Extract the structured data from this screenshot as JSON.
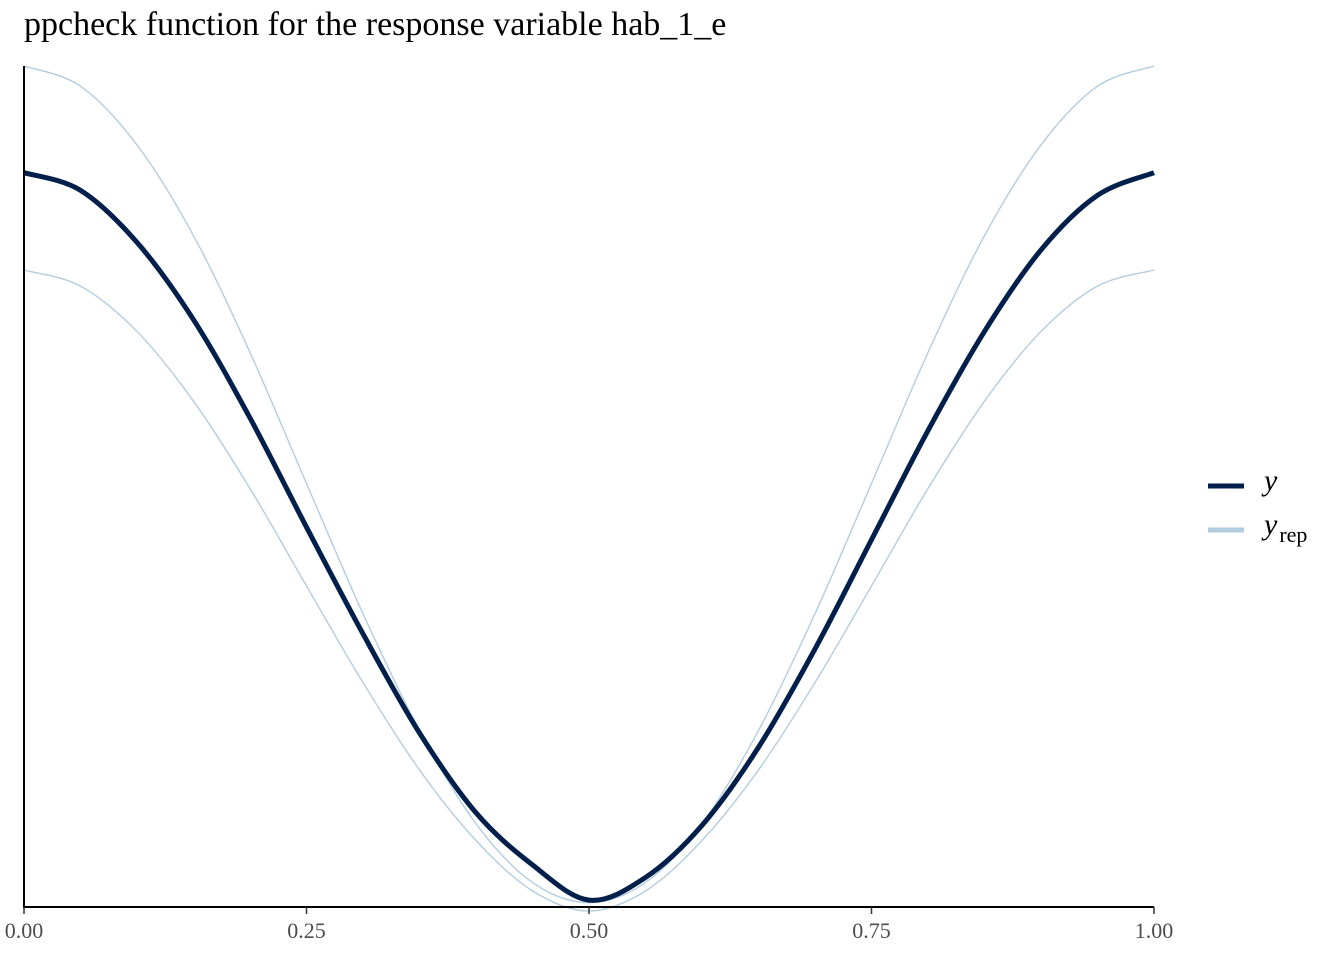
{
  "chart_data": {
    "type": "line",
    "title": "ppcheck function for the response variable hab_1_e",
    "xlabel": "",
    "ylabel": "",
    "xlim": [
      0,
      1
    ],
    "ylim": [
      0,
      1
    ],
    "x_ticks": [
      "0.00",
      "0.25",
      "0.50",
      "0.75",
      "1.00"
    ],
    "y_axis_labels_shown": false,
    "grid": false,
    "legend_position": "right",
    "x": [
      0.0,
      0.05,
      0.1,
      0.15,
      0.2,
      0.25,
      0.3,
      0.35,
      0.4,
      0.45,
      0.5,
      0.55,
      0.6,
      0.65,
      0.7,
      0.75,
      0.8,
      0.85,
      0.9,
      0.95,
      1.0
    ],
    "series": [
      {
        "name": "y",
        "color": "#011f4b",
        "values": [
          0.873,
          0.852,
          0.79,
          0.698,
          0.581,
          0.451,
          0.324,
          0.206,
          0.111,
          0.049,
          0.007,
          0.034,
          0.096,
          0.189,
          0.306,
          0.436,
          0.566,
          0.684,
          0.781,
          0.846,
          0.873
        ]
      },
      {
        "name": "y_rep",
        "color": "#b3cde0",
        "values": [
          1.0,
          0.976,
          0.906,
          0.798,
          0.659,
          0.503,
          0.348,
          0.209,
          0.098,
          0.028,
          0.004,
          0.028,
          0.098,
          0.209,
          0.348,
          0.503,
          0.659,
          0.798,
          0.906,
          0.976,
          1.0
        ]
      },
      {
        "name": "y_rep",
        "color": "#b3cde0",
        "values": [
          0.757,
          0.738,
          0.684,
          0.601,
          0.497,
          0.381,
          0.266,
          0.162,
          0.078,
          0.018,
          -0.006,
          0.018,
          0.078,
          0.162,
          0.266,
          0.381,
          0.497,
          0.601,
          0.684,
          0.738,
          0.757
        ]
      }
    ],
    "legend": [
      {
        "label": "y",
        "subscript": "",
        "color": "#011f4b"
      },
      {
        "label": "y",
        "subscript": "rep",
        "color": "#b3cde0"
      }
    ]
  }
}
